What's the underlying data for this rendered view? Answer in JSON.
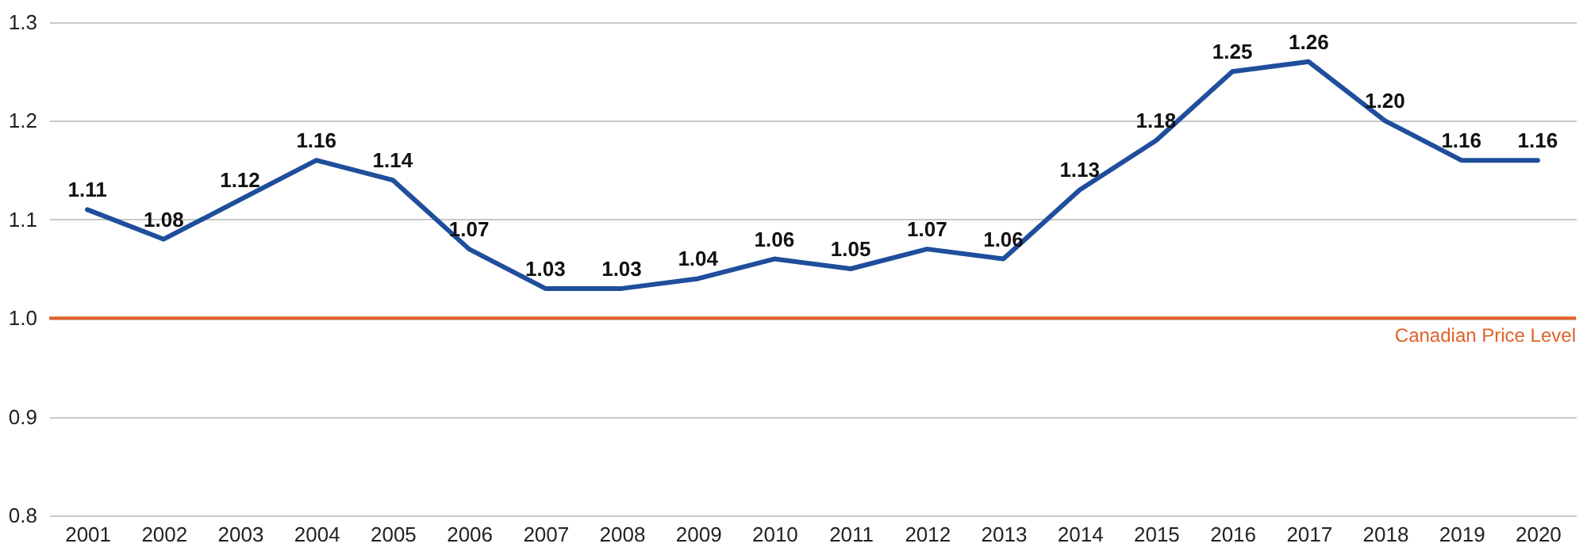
{
  "chart_data": {
    "type": "line",
    "categories": [
      "2001",
      "2002",
      "2003",
      "2004",
      "2005",
      "2006",
      "2007",
      "2008",
      "2009",
      "2010",
      "2011",
      "2012",
      "2013",
      "2014",
      "2015",
      "2016",
      "2017",
      "2018",
      "2019",
      "2020"
    ],
    "series": [
      {
        "color": "#1f4e9c",
        "values": [
          1.11,
          1.08,
          1.12,
          1.16,
          1.14,
          1.07,
          1.03,
          1.03,
          1.04,
          1.06,
          1.05,
          1.07,
          1.06,
          1.13,
          1.18,
          1.25,
          1.26,
          1.2,
          1.16,
          1.16
        ],
        "value_labels": [
          "1.11",
          "1.08",
          "1.12",
          "1.16",
          "1.14",
          "1.07",
          "1.03",
          "1.03",
          "1.04",
          "1.06",
          "1.05",
          "1.07",
          "1.06",
          "1.13",
          "1.18",
          "1.25",
          "1.26",
          "1.20",
          "1.16",
          "1.16"
        ]
      }
    ],
    "ylim": [
      0.8,
      1.3
    ],
    "yticks": [
      0.8,
      0.9,
      {
        "value": 1,
        "label": "1.0"
      },
      1.1,
      1.2,
      1.3
    ],
    "grid": "y",
    "ref_lines": [
      {
        "axis": "y",
        "value": 1,
        "label": "Canadian Price Level",
        "color": "#e0622a"
      }
    ]
  }
}
